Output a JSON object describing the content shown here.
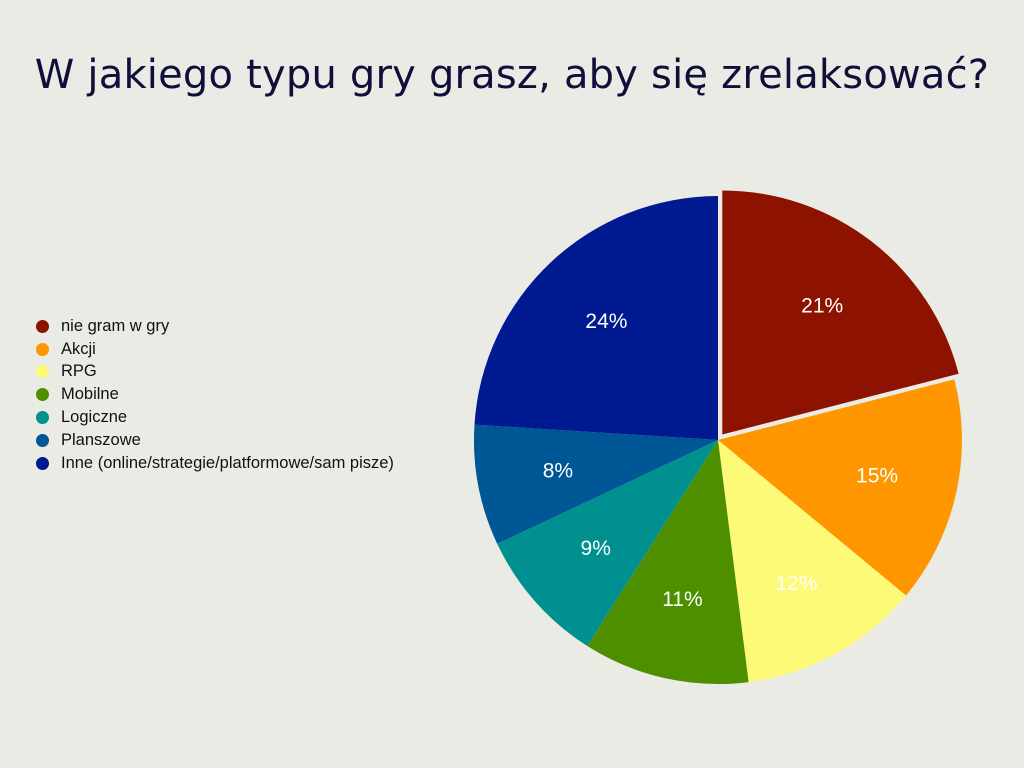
{
  "chart_data": {
    "type": "pie",
    "title": "W jakiego typu gry grasz, aby się zrelaksować?",
    "legend_position": "left",
    "slices": [
      {
        "name": "nie gram w gry",
        "value": 21,
        "label": "21%",
        "color": "#8e1200",
        "exploded": true
      },
      {
        "name": "Akcji",
        "value": 15,
        "label": "15%",
        "color": "#ff9600",
        "exploded": false
      },
      {
        "name": "RPG",
        "value": 12,
        "label": "12%",
        "color": "#fdfa78",
        "exploded": false
      },
      {
        "name": "Mobilne",
        "value": 11,
        "label": "11%",
        "color": "#4e8f00",
        "exploded": false
      },
      {
        "name": "Logiczne",
        "value": 9,
        "label": "9%",
        "color": "#009090",
        "exploded": false
      },
      {
        "name": "Planszowe",
        "value": 8,
        "label": "8%",
        "color": "#005796",
        "exploded": false
      },
      {
        "name": "Inne (online/strategie/platformowe/sam pisze)",
        "value": 24,
        "label": "24%",
        "color": "#001a92",
        "exploded": false
      }
    ]
  }
}
